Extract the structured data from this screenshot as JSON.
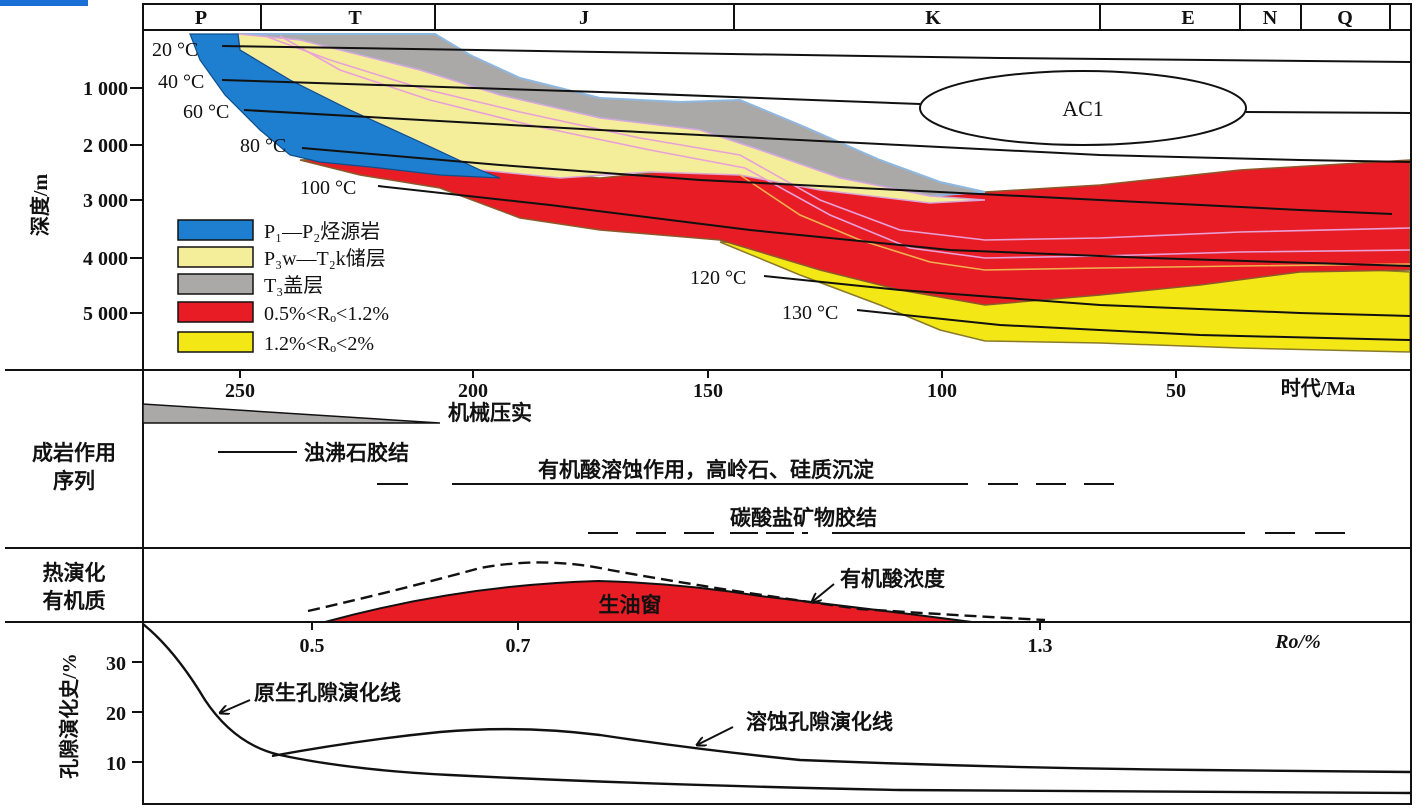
{
  "periods": [
    "P",
    "T",
    "J",
    "K",
    "E",
    "N",
    "Q"
  ],
  "burial_panel": {
    "ylabel": "深度/m",
    "depth_ticks": [
      "1 000",
      "2 000",
      "3 000",
      "4 000",
      "5 000"
    ],
    "isotherms": [
      "20 °C",
      "40 °C",
      "60 °C",
      "80 °C",
      "100 °C",
      "120 °C",
      "130 °C"
    ],
    "ac_label": "AC1",
    "legend": [
      {
        "label": "P₁—P₂烃源岩",
        "color": "#1e7fd0"
      },
      {
        "label": "P₃w—T₂k储层",
        "color": "#f4ee9a"
      },
      {
        "label": "T₃盖层",
        "color": "#aba8a8"
      },
      {
        "label": "0.5%<Rₒ<1.2%",
        "color": "#e81c24"
      },
      {
        "label": "1.2%<Rₒ<2%",
        "color": "#f3e716"
      }
    ]
  },
  "age_axis": {
    "ticks": [
      "250",
      "200",
      "150",
      "100",
      "50"
    ],
    "label": "时代/Ma"
  },
  "diagenesis_panel": {
    "label_line1": "成岩作用",
    "label_line2": "序列",
    "events": [
      "机械压实",
      "浊沸石胶结",
      "有机酸溶蚀作用，高岭石、硅质沉淀",
      "碳酸盐矿物胶结"
    ]
  },
  "thermal_panel": {
    "label_line1": "热演化",
    "label_line2": "有机质",
    "oil_window": "生油窗",
    "acid_concentration": "有机酸浓度",
    "ro_ticks": [
      "0.5",
      "0.7",
      "1.3"
    ],
    "ro_label": "Ro/%"
  },
  "porosity_panel": {
    "ylabel": "孔隙演化史/%",
    "ticks": [
      "30",
      "20",
      "10"
    ],
    "primary_line": "原生孔隙演化线",
    "dissolution_line": "溶蚀孔隙演化线"
  },
  "colors": {
    "source_rock": "#1e7fd0",
    "reservoir": "#f4ee9a",
    "cap": "#aba8a8",
    "ro_mid": "#e81c24",
    "ro_high": "#f3e716",
    "corner_tab": "#1a6fd6"
  }
}
